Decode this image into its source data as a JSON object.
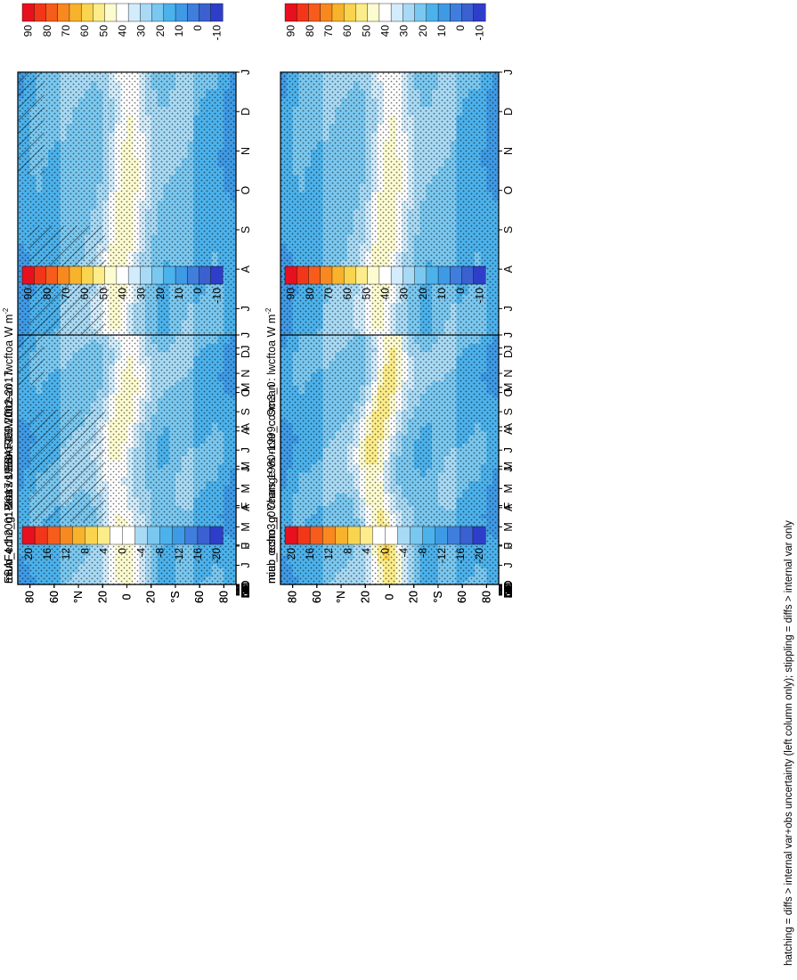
{
  "figure_note": "hatching = diffs > internal var+obs uncertainty (left column only); stippling = diffs > internal var only",
  "palettes": {
    "abs": [
      "#e8101e",
      "#f2361a",
      "#f65c1c",
      "#f88820",
      "#f8b22c",
      "#fad44e",
      "#fcec8a",
      "#fdfbd0",
      "#ffffff",
      "#d3ecfb",
      "#a8daf5",
      "#7ac8f0",
      "#4cb2ec",
      "#3f9ae6",
      "#3f7edc",
      "#3b60d0",
      "#2f3ec8"
    ],
    "diff": [
      "#e8101e",
      "#f2361a",
      "#f65c1c",
      "#f88820",
      "#f8b22c",
      "#fad44e",
      "#fcec8a",
      "#ffffff",
      "#ffffff",
      "#a8daf5",
      "#7ac8f0",
      "#4cb2ec",
      "#3f9ae6",
      "#3f7edc",
      "#3b60d0",
      "#2f3ec8"
    ]
  },
  "chart_data": [
    {
      "type": "heatmap",
      "id": "model-left",
      "title": "miub_echo_g: Years 1980-1999 : Ocean : lwcftoa W m",
      "title_superscript": "-2",
      "xlabel": "",
      "ylabel": "",
      "x_ticks": [
        "D",
        "J",
        "F",
        "M",
        "A",
        "M",
        "J",
        "J",
        "A",
        "S",
        "O",
        "N",
        "D",
        "J"
      ],
      "y_ticks": [
        "80",
        "60",
        "°N",
        "20",
        "0",
        "20",
        "°S",
        "60",
        "80"
      ],
      "ylim": [
        -90,
        90
      ],
      "colorbar": {
        "labels": [
          "90",
          "80",
          "70",
          "60",
          "50",
          "40",
          "30",
          "20",
          "10",
          "0",
          "-10"
        ],
        "palette": "abs"
      },
      "field": "abs",
      "peak": "south",
      "hatch": true,
      "annotations": "hatched and stippled"
    },
    {
      "type": "heatmap",
      "id": "model-right",
      "title": "miub_echo_g: Years 1980-1999 : Ocean : lwcftoa W m",
      "title_superscript": "-2",
      "xlabel": "",
      "ylabel": "",
      "x_ticks": [
        "D",
        "J",
        "F",
        "M",
        "A",
        "M",
        "J",
        "J",
        "A",
        "S",
        "O",
        "N",
        "D",
        "J"
      ],
      "y_ticks": [
        "80",
        "60",
        "°N",
        "20",
        "0",
        "20",
        "°S",
        "60",
        "80"
      ],
      "ylim": [
        -90,
        90
      ],
      "colorbar": {
        "labels": [
          "90",
          "80",
          "70",
          "60",
          "50",
          "40",
          "30",
          "20",
          "10",
          "0",
          "-10"
        ],
        "palette": "abs"
      },
      "field": "abs",
      "peak": "south",
      "hatch": false,
      "annotations": "stippled"
    },
    {
      "type": "heatmap",
      "id": "obs-left",
      "title": "EBAF4.1 2001-2017 Uncer=15 W/m2",
      "title_superscript": "",
      "xlabel": "",
      "ylabel": "",
      "x_ticks": [
        "D",
        "J",
        "F",
        "M",
        "A",
        "M",
        "J",
        "J",
        "A",
        "S",
        "O",
        "N",
        "D",
        "J"
      ],
      "y_ticks": [
        "80",
        "60",
        "°N",
        "20",
        "0",
        "20",
        "°S",
        "60",
        "80"
      ],
      "ylim": [
        -90,
        90
      ],
      "colorbar": {
        "labels": [
          "90",
          "80",
          "70",
          "60",
          "50",
          "40",
          "30",
          "20",
          "10",
          "0",
          "-10"
        ],
        "palette": "abs"
      },
      "field": "abs",
      "peak": "south",
      "hatch": true,
      "annotations": "hatched and stippled"
    },
    {
      "type": "heatmap",
      "id": "ref-right",
      "title": "ncar_ccsm3_0",
      "title_superscript": "",
      "xlabel": "",
      "ylabel": "",
      "x_ticks": [
        "D",
        "J",
        "F",
        "M",
        "A",
        "M",
        "J",
        "J",
        "A",
        "S",
        "O",
        "N",
        "D",
        "J"
      ],
      "y_ticks": [
        "80",
        "60",
        "°N",
        "20",
        "0",
        "20",
        "°S",
        "60",
        "80"
      ],
      "ylim": [
        -90,
        90
      ],
      "colorbar": {
        "labels": [
          "90",
          "80",
          "70",
          "60",
          "50",
          "40",
          "30",
          "20",
          "10",
          "0",
          "-10"
        ],
        "palette": "abs"
      },
      "field": "abs",
      "peak": "strong",
      "hatch": false,
      "annotations": "stippled"
    },
    {
      "type": "heatmap",
      "id": "bias-left",
      "title": "miub_echo_g: Bias vs EBAF4.1 2001-2017",
      "title_superscript": "",
      "xlabel": "",
      "ylabel": "",
      "x_ticks": [
        "D",
        "J",
        "F",
        "M",
        "A",
        "M",
        "J",
        "J",
        "A",
        "S",
        "O",
        "N",
        "D",
        "J"
      ],
      "y_ticks": [
        "80",
        "60",
        "°N",
        "20",
        "0",
        "20",
        "°S",
        "60",
        "80"
      ],
      "ylim": [
        -90,
        90
      ],
      "colorbar": {
        "labels": [
          "20",
          "16",
          "12",
          "8",
          "4",
          "0",
          "-4",
          "-8",
          "-12",
          "-16",
          "-20"
        ],
        "palette": "diff"
      },
      "field": "bias",
      "hatch": true,
      "annotations": "hatched and stippled"
    },
    {
      "type": "heatmap",
      "id": "change-right",
      "title": "miub_echo_g: Change vs ncar_ccsm3_0",
      "title_superscript": "",
      "xlabel": "",
      "ylabel": "",
      "x_ticks": [
        "D",
        "J",
        "F",
        "M",
        "A",
        "M",
        "J",
        "J",
        "A",
        "S",
        "O",
        "N",
        "D",
        "J"
      ],
      "y_ticks": [
        "80",
        "60",
        "°N",
        "20",
        "0",
        "20",
        "°S",
        "60",
        "80"
      ],
      "ylim": [
        -90,
        90
      ],
      "colorbar": {
        "labels": [
          "20",
          "16",
          "12",
          "8",
          "4",
          "0",
          "-4",
          "-8",
          "-12",
          "-16",
          "-20"
        ],
        "palette": "diff"
      },
      "field": "change",
      "hatch": false,
      "annotations": "stippled"
    }
  ]
}
